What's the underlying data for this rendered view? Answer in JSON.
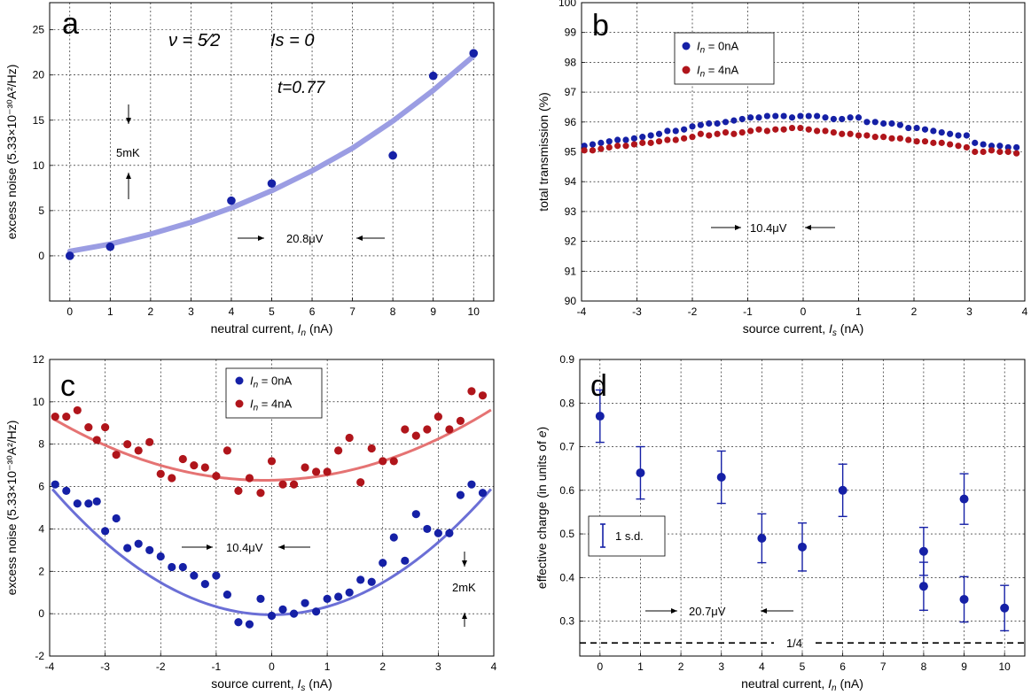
{
  "chart_data": [
    {
      "panel": "a",
      "type": "scatter",
      "xlabel": "neutral current, In (nA)",
      "ylabel": "excess noise (5.33×10⁻³⁰A²/Hz)",
      "xlim": [
        -0.5,
        10.5
      ],
      "ylim": [
        -5,
        28
      ],
      "xticks": [
        0,
        1,
        2,
        3,
        4,
        5,
        6,
        7,
        8,
        9,
        10
      ],
      "yticks": [
        0,
        5,
        10,
        15,
        20,
        25
      ],
      "series": [
        {
          "role": "points",
          "color": "#1520a6",
          "x": [
            0,
            1,
            4,
            5,
            8,
            9,
            10
          ],
          "y": [
            0,
            1,
            6.1,
            8,
            11.1,
            19.9,
            22.4
          ]
        },
        {
          "role": "fit",
          "color": "#9b9de3",
          "x": [
            0,
            1,
            2,
            3,
            4,
            5,
            6,
            7,
            8,
            9,
            10
          ],
          "y": [
            0.5,
            1.3,
            2.4,
            3.7,
            5.3,
            7.2,
            9.4,
            11.9,
            14.9,
            18.3,
            22.1
          ]
        }
      ],
      "annotations": [
        {
          "text": "ν = 5⁄2"
        },
        {
          "text": "Is = 0"
        },
        {
          "text": "t=0.77"
        },
        {
          "text": "5mK"
        },
        {
          "text": "20.8μV"
        }
      ]
    },
    {
      "panel": "b",
      "type": "scatter",
      "xlabel": "source current, Is (nA)",
      "ylabel": "total transmission (%)",
      "xlim": [
        -4,
        4
      ],
      "ylim": [
        90,
        100
      ],
      "xticks": [
        -4,
        -3,
        -2,
        -1,
        0,
        1,
        2,
        3,
        4
      ],
      "yticks": [
        90,
        91,
        92,
        93,
        94,
        95,
        96,
        97,
        98,
        99,
        100
      ],
      "legend_position": "top-left",
      "series": [
        {
          "name": "In = 0nA",
          "color": "#1520a6",
          "x": [
            -3.95,
            -3.8,
            -3.65,
            -3.5,
            -3.35,
            -3.2,
            -3.05,
            -2.9,
            -2.75,
            -2.6,
            -2.45,
            -2.3,
            -2.15,
            -2.0,
            -1.85,
            -1.7,
            -1.55,
            -1.4,
            -1.25,
            -1.1,
            -0.95,
            -0.8,
            -0.65,
            -0.5,
            -0.35,
            -0.2,
            -0.05,
            0.1,
            0.25,
            0.4,
            0.55,
            0.7,
            0.85,
            1.0,
            1.15,
            1.3,
            1.45,
            1.6,
            1.75,
            1.9,
            2.05,
            2.2,
            2.35,
            2.5,
            2.65,
            2.8,
            2.95,
            3.1,
            3.25,
            3.4,
            3.55,
            3.7,
            3.85
          ],
          "y": [
            95.2,
            95.25,
            95.3,
            95.35,
            95.4,
            95.4,
            95.45,
            95.5,
            95.55,
            95.6,
            95.7,
            95.7,
            95.75,
            95.85,
            95.9,
            95.95,
            95.95,
            96.0,
            96.05,
            96.1,
            96.15,
            96.15,
            96.2,
            96.2,
            96.2,
            96.15,
            96.2,
            96.2,
            96.2,
            96.15,
            96.1,
            96.1,
            96.15,
            96.15,
            96.0,
            96.0,
            95.95,
            95.95,
            95.9,
            95.8,
            95.8,
            95.75,
            95.7,
            95.65,
            95.6,
            95.55,
            95.55,
            95.3,
            95.25,
            95.2,
            95.2,
            95.15,
            95.15
          ]
        },
        {
          "name": "In = 4nA",
          "color": "#b0151b",
          "x": [
            -3.95,
            -3.8,
            -3.65,
            -3.5,
            -3.35,
            -3.2,
            -3.05,
            -2.9,
            -2.75,
            -2.6,
            -2.45,
            -2.3,
            -2.15,
            -2.0,
            -1.85,
            -1.7,
            -1.55,
            -1.4,
            -1.25,
            -1.1,
            -0.95,
            -0.8,
            -0.65,
            -0.5,
            -0.35,
            -0.2,
            -0.05,
            0.1,
            0.25,
            0.4,
            0.55,
            0.7,
            0.85,
            1.0,
            1.15,
            1.3,
            1.45,
            1.6,
            1.75,
            1.9,
            2.05,
            2.2,
            2.35,
            2.5,
            2.65,
            2.8,
            2.95,
            3.1,
            3.25,
            3.4,
            3.55,
            3.7,
            3.85
          ],
          "y": [
            95.05,
            95.05,
            95.1,
            95.15,
            95.2,
            95.2,
            95.25,
            95.3,
            95.3,
            95.35,
            95.4,
            95.4,
            95.45,
            95.5,
            95.6,
            95.55,
            95.6,
            95.65,
            95.6,
            95.65,
            95.7,
            95.75,
            95.7,
            95.75,
            95.75,
            95.8,
            95.8,
            95.75,
            95.7,
            95.7,
            95.65,
            95.6,
            95.6,
            95.55,
            95.55,
            95.5,
            95.5,
            95.45,
            95.45,
            95.4,
            95.35,
            95.35,
            95.3,
            95.3,
            95.25,
            95.2,
            95.15,
            95.0,
            95.0,
            95.05,
            95.0,
            95.0,
            94.95
          ]
        }
      ],
      "annotations": [
        {
          "text": "10.4μV"
        }
      ]
    },
    {
      "panel": "c",
      "type": "scatter",
      "xlabel": "source current, Is (nA)",
      "ylabel": "excess noise (5.33×10⁻³⁰A²/Hz)",
      "xlim": [
        -4,
        4
      ],
      "ylim": [
        -2,
        12
      ],
      "xticks": [
        -4,
        -3,
        -2,
        -1,
        0,
        1,
        2,
        3,
        4
      ],
      "yticks": [
        -2,
        0,
        2,
        4,
        6,
        8,
        10,
        12
      ],
      "legend_position": "top-center",
      "series": [
        {
          "name": "In = 0nA",
          "color": "#1520a6",
          "x": [
            -3.9,
            -3.7,
            -3.5,
            -3.3,
            -3.15,
            -3.0,
            -2.8,
            -2.6,
            -2.4,
            -2.2,
            -2.0,
            -1.8,
            -1.6,
            -1.4,
            -1.2,
            -1.0,
            -0.8,
            -0.6,
            -0.4,
            -0.2,
            0.0,
            0.2,
            0.4,
            0.6,
            0.8,
            1.0,
            1.2,
            1.4,
            1.6,
            1.8,
            2.0,
            2.2,
            2.4,
            2.6,
            2.8,
            3.0,
            3.2,
            3.4,
            3.6,
            3.8
          ],
          "y": [
            6.1,
            5.8,
            5.2,
            5.2,
            5.3,
            3.9,
            4.5,
            3.1,
            3.3,
            3.0,
            2.7,
            2.2,
            2.2,
            1.8,
            1.4,
            1.8,
            0.9,
            -0.4,
            -0.5,
            0.7,
            -0.1,
            0.2,
            0.0,
            0.5,
            0.1,
            0.7,
            0.8,
            1.0,
            1.6,
            1.5,
            2.4,
            3.6,
            2.5,
            4.7,
            4.0,
            3.8,
            3.8,
            5.6,
            6.1,
            5.7
          ],
          "range": [
            -3.95,
            3.95
          ]
        },
        {
          "name": "In = 4nA",
          "color": "#b0151b",
          "x": [
            -3.9,
            -3.7,
            -3.5,
            -3.3,
            -3.15,
            -3.0,
            -2.8,
            -2.6,
            -2.4,
            -2.2,
            -2.0,
            -1.8,
            -1.6,
            -1.4,
            -1.2,
            -1.0,
            -0.8,
            -0.6,
            -0.4,
            -0.2,
            0.0,
            0.2,
            0.4,
            0.6,
            0.8,
            1.0,
            1.2,
            1.4,
            1.6,
            1.8,
            2.0,
            2.2,
            2.4,
            2.6,
            2.8,
            3.0,
            3.2,
            3.4,
            3.6,
            3.8
          ],
          "y": [
            9.3,
            9.3,
            9.6,
            8.8,
            8.2,
            8.8,
            7.5,
            8.0,
            7.7,
            8.1,
            6.6,
            6.4,
            7.3,
            7.0,
            6.9,
            6.5,
            7.7,
            5.8,
            6.4,
            5.7,
            7.2,
            6.1,
            6.1,
            6.9,
            6.7,
            6.7,
            7.7,
            8.3,
            6.2,
            7.8,
            7.2,
            7.2,
            8.7,
            8.4,
            8.7,
            9.3,
            8.7,
            9.1,
            10.5,
            10.3
          ]
        }
      ],
      "annotations": [
        {
          "text": "10.4μV"
        },
        {
          "text": "2mK"
        }
      ]
    },
    {
      "panel": "d",
      "type": "scatter",
      "xlabel": "neutral current, In (nA)",
      "ylabel": "effective charge (in units of e)",
      "xlim": [
        -0.5,
        10.5
      ],
      "ylim": [
        0.22,
        0.9
      ],
      "xticks": [
        0,
        1,
        2,
        3,
        4,
        5,
        6,
        7,
        8,
        9,
        10
      ],
      "yticks": [
        0.3,
        0.4,
        0.5,
        0.6,
        0.7,
        0.8,
        0.9
      ],
      "reference_line": {
        "y": 0.25,
        "label": "1/4"
      },
      "series": [
        {
          "name": "1 s.d.",
          "color": "#1520a6",
          "x": [
            0,
            1,
            3,
            4,
            5,
            6,
            8,
            8,
            9,
            9,
            10
          ],
          "y": [
            0.77,
            0.64,
            0.63,
            0.49,
            0.47,
            0.6,
            0.46,
            0.38,
            0.58,
            0.35,
            0.33
          ],
          "err": [
            0.06,
            0.06,
            0.06,
            0.056,
            0.055,
            0.06,
            0.055,
            0.055,
            0.058,
            0.052,
            0.052
          ]
        }
      ],
      "annotations": [
        {
          "text": "20.7μV"
        }
      ]
    }
  ]
}
